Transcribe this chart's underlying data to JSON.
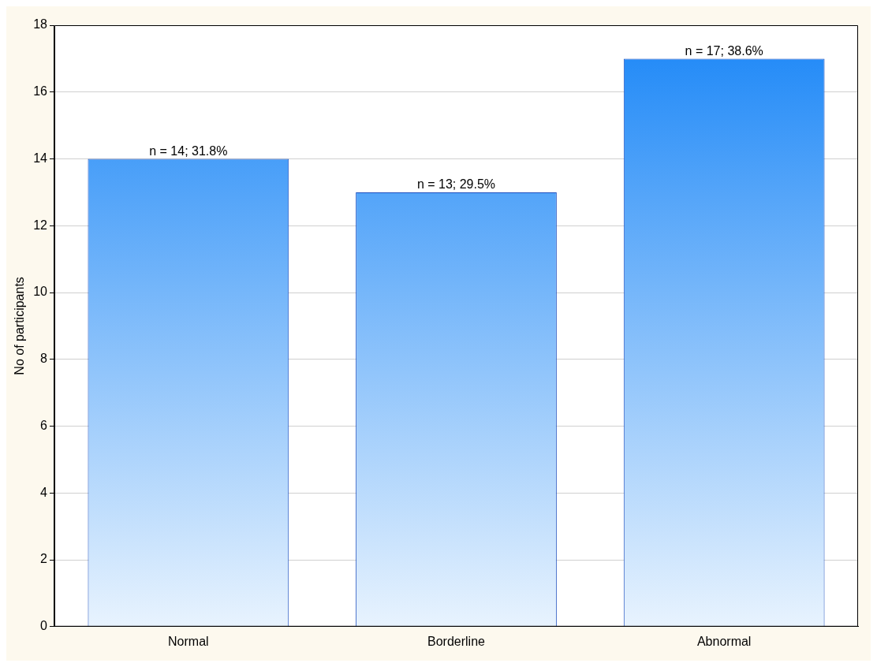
{
  "chart_data": {
    "type": "bar",
    "ylabel": "No of participants",
    "categories": [
      "Normal",
      "Borderline",
      "Abnormal"
    ],
    "values": [
      14,
      13,
      17
    ],
    "color": "#1a86f7",
    "value_labels": [
      "n = 14; 31.8%",
      "n = 13; 29.5%",
      "n = 17; 38.6%"
    ],
    "ylim": [
      0,
      18
    ],
    "yticks": [
      0,
      2,
      4,
      6,
      8,
      10,
      12,
      14,
      16,
      18
    ],
    "grid": "y",
    "legend": false
  }
}
